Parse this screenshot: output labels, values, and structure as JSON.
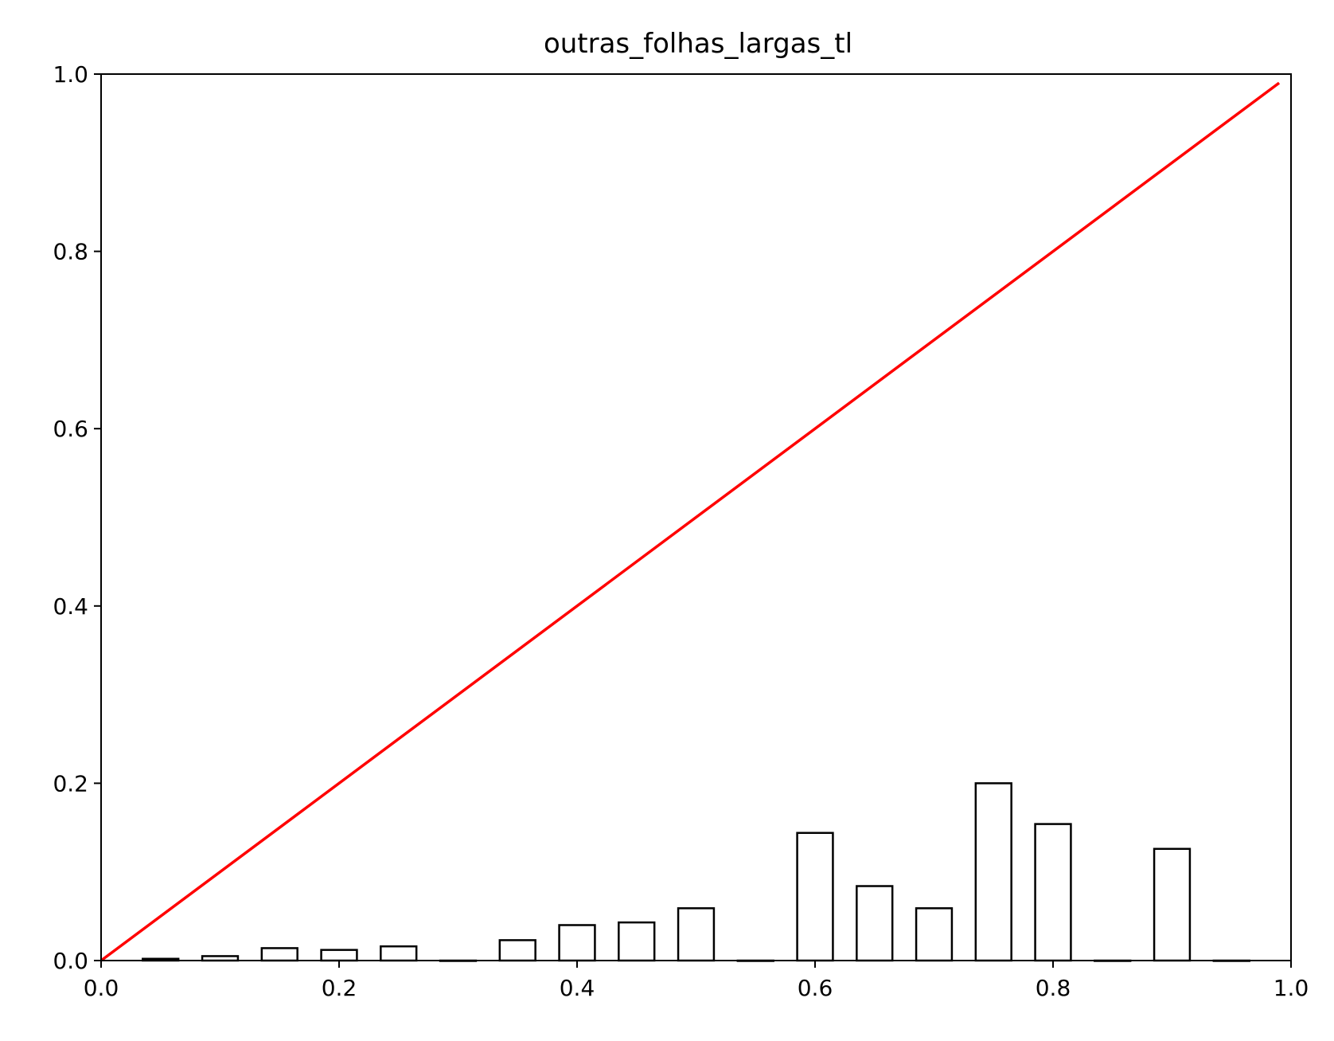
{
  "chart_data": {
    "type": "bar",
    "title": "outras_folhas_largas_tl",
    "xlabel": "",
    "ylabel": "",
    "xlim": [
      0.0,
      1.0
    ],
    "ylim": [
      0.0,
      1.0
    ],
    "xticks": [
      "0.0",
      "0.2",
      "0.4",
      "0.6",
      "0.8",
      "1.0"
    ],
    "yticks": [
      "0.0",
      "0.2",
      "0.4",
      "0.6",
      "0.8",
      "1.0"
    ],
    "grid": false,
    "bar_fill": "#ffffff",
    "bar_edge": "#000000",
    "bars": [
      {
        "x": 0.05,
        "value": 0.002
      },
      {
        "x": 0.1,
        "value": 0.005
      },
      {
        "x": 0.15,
        "value": 0.014
      },
      {
        "x": 0.2,
        "value": 0.012
      },
      {
        "x": 0.25,
        "value": 0.016
      },
      {
        "x": 0.3,
        "value": 0.0
      },
      {
        "x": 0.35,
        "value": 0.023
      },
      {
        "x": 0.4,
        "value": 0.04
      },
      {
        "x": 0.45,
        "value": 0.043
      },
      {
        "x": 0.5,
        "value": 0.059
      },
      {
        "x": 0.55,
        "value": 0.0
      },
      {
        "x": 0.6,
        "value": 0.144
      },
      {
        "x": 0.65,
        "value": 0.084
      },
      {
        "x": 0.7,
        "value": 0.059
      },
      {
        "x": 0.75,
        "value": 0.2
      },
      {
        "x": 0.8,
        "value": 0.154
      },
      {
        "x": 0.85,
        "value": 0.0
      },
      {
        "x": 0.9,
        "value": 0.126
      },
      {
        "x": 0.95,
        "value": 0.0
      }
    ],
    "reference_line": {
      "color": "#ff0000",
      "x": [
        0.0,
        0.99
      ],
      "y": [
        0.0,
        0.99
      ]
    }
  }
}
